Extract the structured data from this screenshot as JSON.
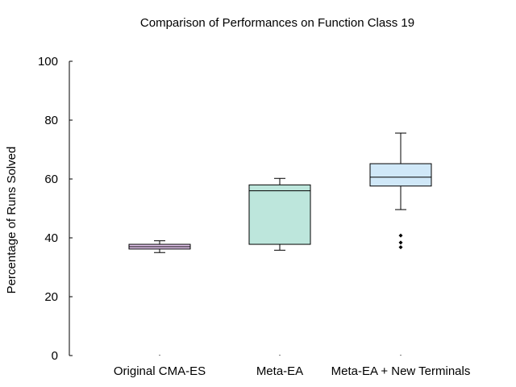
{
  "chart_data": {
    "type": "box",
    "title": "Comparison of Performances on Function Class 19",
    "xlabel": "",
    "ylabel": "Percentage of Runs Solved",
    "ylim": [
      0,
      100
    ],
    "yticks": [
      0,
      20,
      40,
      60,
      80,
      100
    ],
    "categories": [
      "Original CMA-ES",
      "Meta-EA",
      "Meta-EA + New Terminals"
    ],
    "boxes": [
      {
        "whisker_low": 35,
        "q1": 36.2,
        "median": 37,
        "q3": 37.8,
        "whisker_high": 39,
        "outliers": [],
        "color": "#e6c8f0"
      },
      {
        "whisker_low": 35.8,
        "q1": 37.8,
        "median": 56,
        "q3": 58,
        "whisker_high": 60.2,
        "outliers": [],
        "color": "#bde6dc"
      },
      {
        "whisker_low": 49.6,
        "q1": 57.6,
        "median": 60.6,
        "q3": 65.2,
        "whisker_high": 75.6,
        "outliers": [
          36.8,
          38.4,
          40.8
        ],
        "color": "#d0e8f8"
      }
    ],
    "grid": false,
    "legend": "none"
  }
}
